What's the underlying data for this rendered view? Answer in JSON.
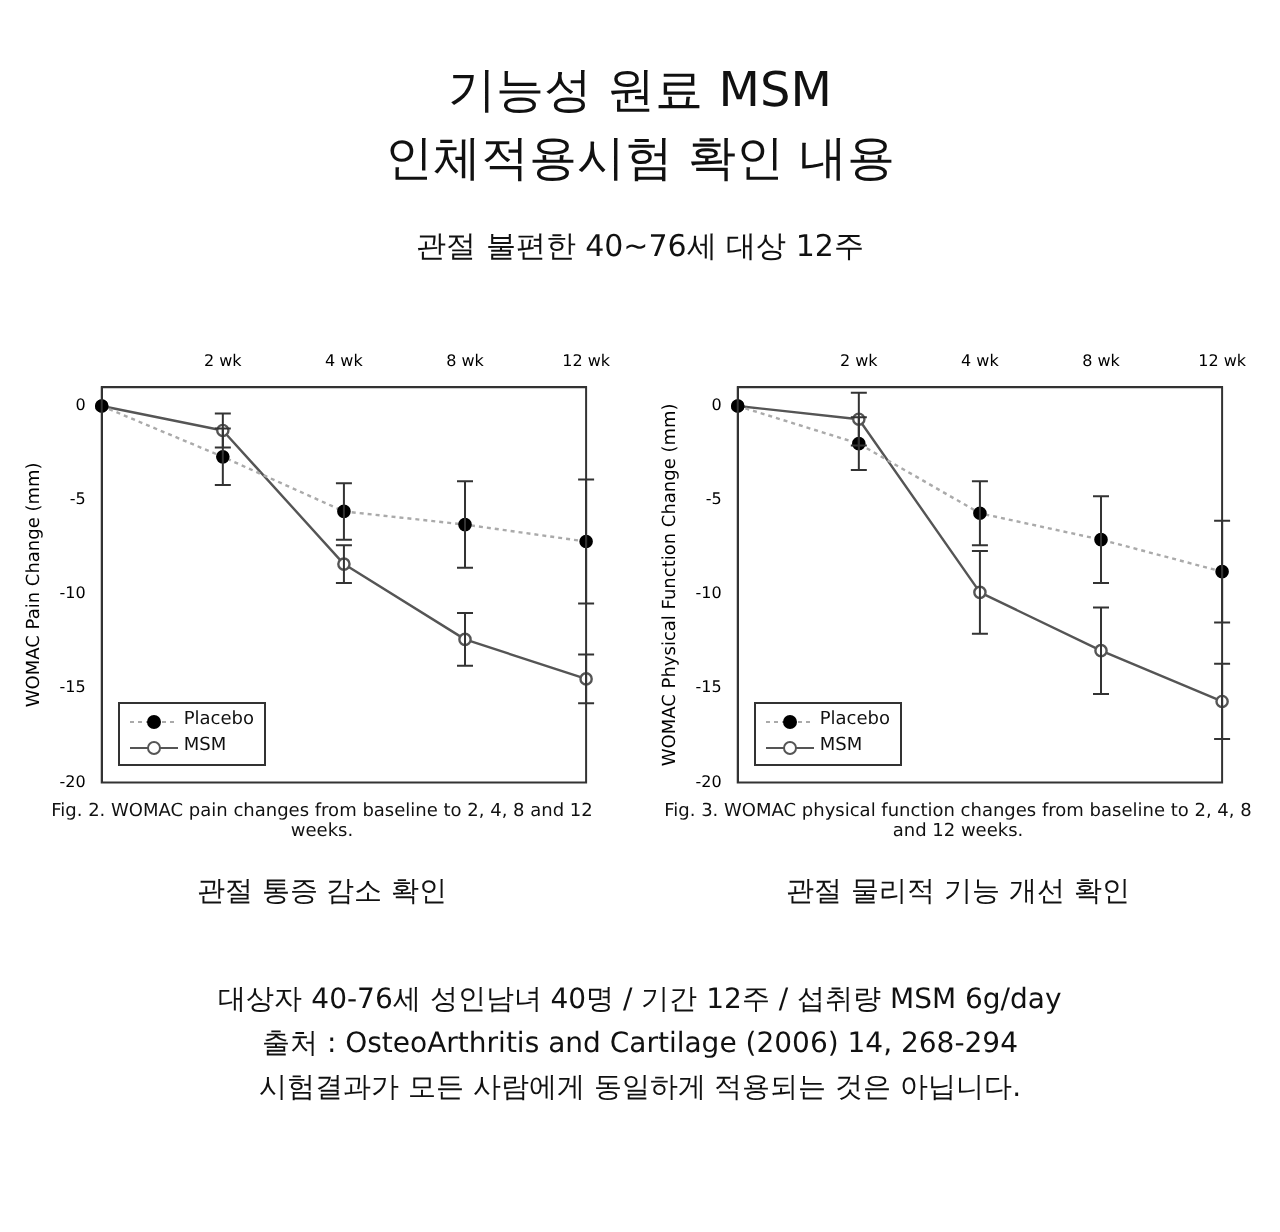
{
  "chart_data": [
    {
      "type": "line",
      "title": "기능성 원료 MSM\n인체적용시험 확인 내용",
      "subtitle": "관절 불편한 40~76세 대상 12주",
      "ylabel": "WOMAC Pain Change (mm)",
      "categories": [
        null,
        "2 wk",
        "4 wk",
        "8 wk",
        "12 wk"
      ],
      "series": [
        {
          "name": "Placebo",
          "color": "#000000",
          "values": [
            0,
            -2.7,
            -5.6,
            -6.3,
            -7.2
          ],
          "errors": [
            null,
            1.5,
            1.5,
            2.3,
            3.3
          ],
          "line_style": "dotted"
        },
        {
          "name": "MSM",
          "color": "#555555",
          "values": [
            0,
            -1.3,
            -8.4,
            -12.4,
            -14.5
          ],
          "errors": [
            null,
            0.9,
            1.0,
            1.4,
            1.3
          ],
          "line_style": "solid"
        }
      ],
      "ylim": [
        -20,
        1
      ],
      "yticks": [
        0,
        -5,
        -10,
        -15,
        -20
      ],
      "grid": false,
      "legend": "bottom left",
      "marker": "circle",
      "annotations": [
        "Fig. 2. WOMAC pain changes from baseline to 2, 4, 8 and 12 weeks.",
        "관절 통증 감소 확인"
      ]
    },
    {
      "type": "line",
      "ylabel": "WOMAC Physical Function Change (mm)",
      "categories": [
        null,
        "2 wk",
        "4 wk",
        "8 wk",
        "12 wk"
      ],
      "series": [
        {
          "name": "Placebo",
          "color": "#000000",
          "values": [
            0,
            -2.0,
            -5.7,
            -7.1,
            -8.8
          ],
          "errors": [
            null,
            1.4,
            1.7,
            2.3,
            2.7
          ],
          "line_style": "dotted"
        },
        {
          "name": "MSM",
          "color": "#555555",
          "values": [
            0,
            -0.7,
            -9.9,
            -13.0,
            -15.7
          ],
          "errors": [
            null,
            1.4,
            2.2,
            2.3,
            2.0
          ],
          "line_style": "solid"
        }
      ],
      "ylim": [
        -20,
        1
      ],
      "yticks": [
        0,
        -5,
        -10,
        -15,
        -20
      ],
      "grid": false,
      "legend": "bottom left",
      "marker": "circle",
      "annotations": [
        "Fig. 3. WOMAC physical function changes from baseline to 2, 4, 8 and 12 weeks.",
        "관절 물리적 기능 개선 확인",
        "대상자 40-76세 성인남녀 40명 / 기간 12주 / 섭취량 MSM 6g/day",
        "출처 : OsteoArthritis and Cartilage (2006) 14, 268-294",
        "시험결과가 모든 사람에게 동일하게 적용되는 것은 아닙니다."
      ]
    }
  ]
}
